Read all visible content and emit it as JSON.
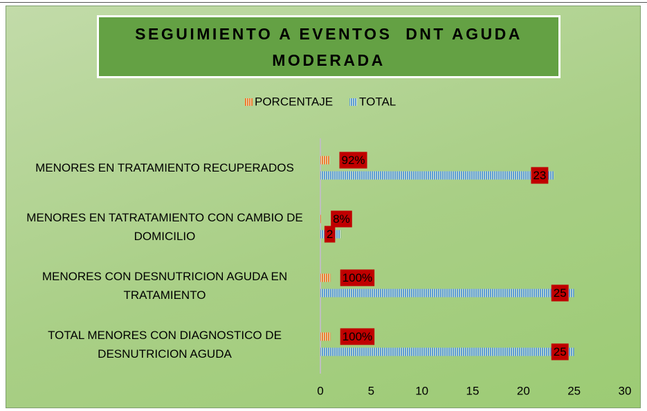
{
  "chart_data": {
    "type": "bar",
    "orientation": "horizontal",
    "title": "SEGUIMIENTO A EVENTOS  DNT AGUDA MODERADA",
    "categories": [
      "MENORES EN TRATAMIENTO RECUPERADOS",
      "MENORES EN TATRATAMIENTO CON CAMBIO DE DOMICILIO",
      "MENORES CON DESNUTRICION AGUDA EN TRATAMIENTO",
      "TOTAL MENORES CON DIAGNOSTICO DE DESNUTRICION AGUDA"
    ],
    "series": [
      {
        "name": "PORCENTAJE",
        "color": "#ed7d31",
        "values": [
          0.92,
          0.08,
          1,
          1
        ],
        "value_labels": [
          "92%",
          "8%",
          "100%",
          "100%"
        ]
      },
      {
        "name": "TOTAL",
        "color": "#5b9bd5",
        "values": [
          23,
          2,
          25,
          25
        ]
      }
    ],
    "xlim": [
      0,
      30
    ],
    "xticks": [
      0,
      5,
      10,
      15,
      20,
      25,
      30
    ],
    "grid": false,
    "legend": "top"
  }
}
